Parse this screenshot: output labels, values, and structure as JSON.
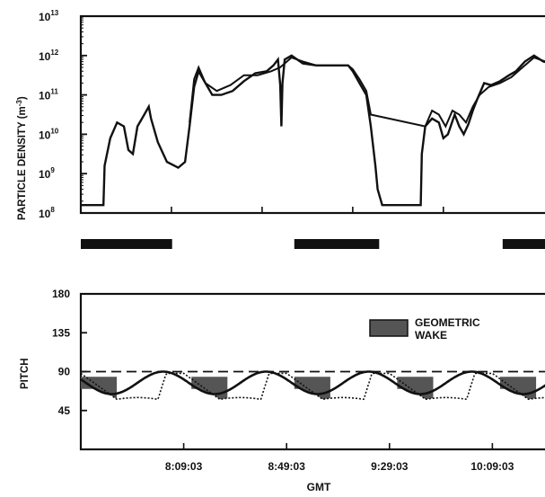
{
  "chart_data": [
    {
      "type": "line",
      "ylabel": "PARTICLE DENSITY (m",
      "ylabel_sup": "-3",
      "ylabel_close": ")",
      "yscale": "log",
      "ylim_exp": [
        8,
        13
      ],
      "ytick_exponents": [
        8,
        9,
        10,
        11,
        12,
        13
      ],
      "ytick_base": "10",
      "xlim_min": [
        0,
        210
      ],
      "series": [
        {
          "points": [
            [
              0,
              8.2
            ],
            [
              10,
              8.2
            ],
            [
              10.5,
              9.2
            ],
            [
              13,
              9.9
            ],
            [
              16,
              10.3
            ],
            [
              19,
              10.2
            ],
            [
              21,
              9.6
            ],
            [
              23,
              9.5
            ],
            [
              25,
              10.2
            ],
            [
              28,
              10.5
            ],
            [
              30,
              10.7
            ],
            [
              31,
              10.4
            ],
            [
              34,
              9.8
            ],
            [
              38,
              9.3
            ],
            [
              43,
              9.15
            ],
            [
              46,
              9.3
            ],
            [
              48,
              10.2
            ],
            [
              50,
              11.2
            ],
            [
              52,
              11.6
            ],
            [
              55,
              11.3
            ],
            [
              58,
              11.0
            ],
            [
              62,
              11.0
            ],
            [
              67,
              11.1
            ],
            [
              72,
              11.35
            ],
            [
              77,
              11.55
            ],
            [
              82,
              11.6
            ],
            [
              85,
              11.75
            ],
            [
              87,
              11.9
            ],
            [
              88,
              11.25
            ],
            [
              88.5,
              10.2
            ],
            [
              89,
              11.3
            ],
            [
              90,
              11.9
            ],
            [
              93,
              12.0
            ],
            [
              98,
              11.8
            ],
            [
              104,
              11.75
            ],
            [
              112,
              11.75
            ],
            [
              118,
              11.75
            ],
            [
              120,
              11.6
            ],
            [
              123,
              11.3
            ],
            [
              126,
              11.0
            ],
            [
              128,
              10.2
            ],
            [
              130,
              9.2
            ],
            [
              131,
              8.6
            ],
            [
              133,
              8.2
            ],
            [
              146,
              8.2
            ],
            [
              150,
              8.2
            ],
            [
              150.5,
              9.5
            ],
            [
              152,
              10.2
            ],
            [
              155,
              10.4
            ],
            [
              158,
              10.3
            ],
            [
              160,
              9.9
            ],
            [
              162,
              10.0
            ],
            [
              165,
              10.5
            ],
            [
              167,
              10.2
            ],
            [
              169,
              10.0
            ],
            [
              171,
              10.25
            ],
            [
              173,
              10.6
            ],
            [
              175,
              10.9
            ],
            [
              178,
              11.3
            ],
            [
              181,
              11.25
            ],
            [
              185,
              11.35
            ],
            [
              189,
              11.5
            ],
            [
              192,
              11.6
            ],
            [
              196,
              11.85
            ],
            [
              200,
              12.0
            ],
            [
              204,
              11.85
            ],
            [
              208,
              11.8
            ],
            [
              212,
              11.6
            ],
            [
              216,
              11.3
            ],
            [
              220,
              10.8
            ],
            [
              224,
              10.0
            ],
            [
              226,
              9.9
            ]
          ]
        },
        {
          "points": [
            [
              48,
              10.3
            ],
            [
              50,
              11.4
            ],
            [
              52,
              11.7
            ],
            [
              55,
              11.3
            ],
            [
              60,
              11.1
            ],
            [
              66,
              11.25
            ],
            [
              72,
              11.5
            ],
            [
              78,
              11.5
            ],
            [
              84,
              11.6
            ],
            [
              88,
              11.7
            ],
            [
              93,
              11.95
            ],
            [
              98,
              11.85
            ],
            [
              104,
              11.75
            ],
            [
              112,
              11.75
            ],
            [
              118,
              11.75
            ],
            [
              120,
              11.65
            ],
            [
              123,
              11.4
            ],
            [
              126,
              11.1
            ],
            [
              128,
              10.5
            ],
            [
              152,
              10.2
            ],
            [
              155,
              10.6
            ],
            [
              158,
              10.5
            ],
            [
              161,
              10.2
            ],
            [
              164,
              10.6
            ],
            [
              167,
              10.5
            ],
            [
              170,
              10.3
            ],
            [
              173,
              10.7
            ],
            [
              176,
              11.0
            ],
            [
              180,
              11.2
            ],
            [
              185,
              11.3
            ],
            [
              190,
              11.45
            ],
            [
              195,
              11.7
            ],
            [
              200,
              11.95
            ],
            [
              205,
              11.85
            ],
            [
              210,
              11.75
            ],
            [
              215,
              11.5
            ],
            [
              218,
              11.3
            ]
          ]
        }
      ]
    },
    {
      "type": "line",
      "ylabel": "PITCH",
      "ylim": [
        0,
        180
      ],
      "yticks": [
        45,
        90,
        135,
        180
      ],
      "xlabel": "GMT",
      "xtick_labels": [
        "8:09:03",
        "8:49:03",
        "9:29:03",
        "10:09:03"
      ],
      "xtick_minutes": [
        40,
        80,
        120,
        160
      ],
      "xlim_min": [
        0,
        185
      ],
      "reference_line": 90,
      "legend_label_1": "GEOMETRIC",
      "legend_label_2": "WAKE",
      "legend_position": "top-right",
      "solid_curve": {
        "mean": 77,
        "amplitude": 13,
        "period_min": 40,
        "phase_deg": 0
      },
      "dotted_curve": {
        "min": 58,
        "max": 88
      },
      "wake_intervals_min": [
        [
          0,
          14
        ],
        [
          43,
          57
        ],
        [
          83,
          97
        ],
        [
          123,
          137
        ],
        [
          163,
          177
        ]
      ],
      "eclipse_bars_min": [
        [
          0,
          35.5
        ],
        [
          83,
          116
        ],
        [
          164,
          185
        ]
      ]
    }
  ]
}
